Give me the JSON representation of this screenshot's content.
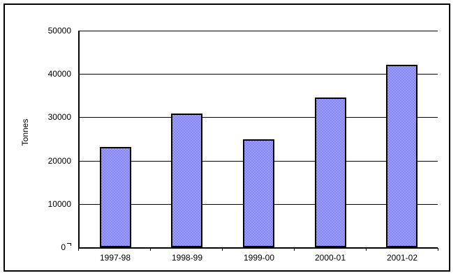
{
  "chart_data": {
    "type": "bar",
    "title": "",
    "xlabel": "",
    "ylabel": "Tonnes",
    "categories": [
      "1997-98",
      "1998-99",
      "1999-00",
      "2000-01",
      "2001-02"
    ],
    "values": [
      23200,
      30900,
      24900,
      34600,
      42200
    ],
    "ylim": [
      0,
      50000
    ],
    "ytick_interval": 10000,
    "ytick_labels": [
      "50000",
      "40000",
      "30000",
      "20000",
      "10000",
      "0"
    ],
    "grid": true,
    "legend_position": "none",
    "colors": {
      "bar_fill": "#9D9DFF",
      "bar_dither": "#8686EF",
      "bar_border": "#000000",
      "axis": "#000000",
      "background": "#FFFFFF"
    }
  }
}
